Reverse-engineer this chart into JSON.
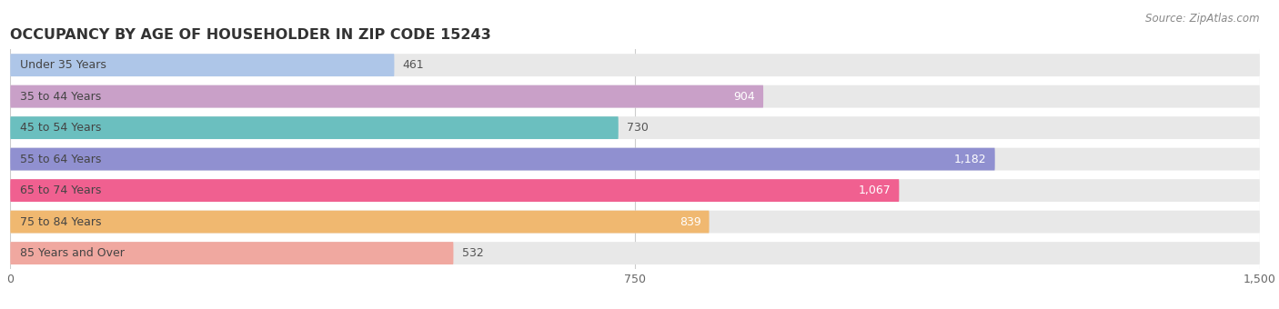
{
  "title": "OCCUPANCY BY AGE OF HOUSEHOLDER IN ZIP CODE 15243",
  "source": "Source: ZipAtlas.com",
  "categories": [
    "Under 35 Years",
    "35 to 44 Years",
    "45 to 54 Years",
    "55 to 64 Years",
    "65 to 74 Years",
    "75 to 84 Years",
    "85 Years and Over"
  ],
  "values": [
    461,
    904,
    730,
    1182,
    1067,
    839,
    532
  ],
  "bar_colors": [
    "#aec6e8",
    "#c9a0c8",
    "#6bbfbf",
    "#9090d0",
    "#f06090",
    "#f0b870",
    "#f0a8a0"
  ],
  "bar_bg_color": "#e8e8e8",
  "xlim": [
    0,
    1500
  ],
  "xticks": [
    0,
    750,
    1500
  ],
  "title_fontsize": 11.5,
  "label_fontsize": 9,
  "value_fontsize": 9,
  "source_fontsize": 8.5,
  "figsize": [
    14.06,
    3.4
  ],
  "dpi": 100
}
